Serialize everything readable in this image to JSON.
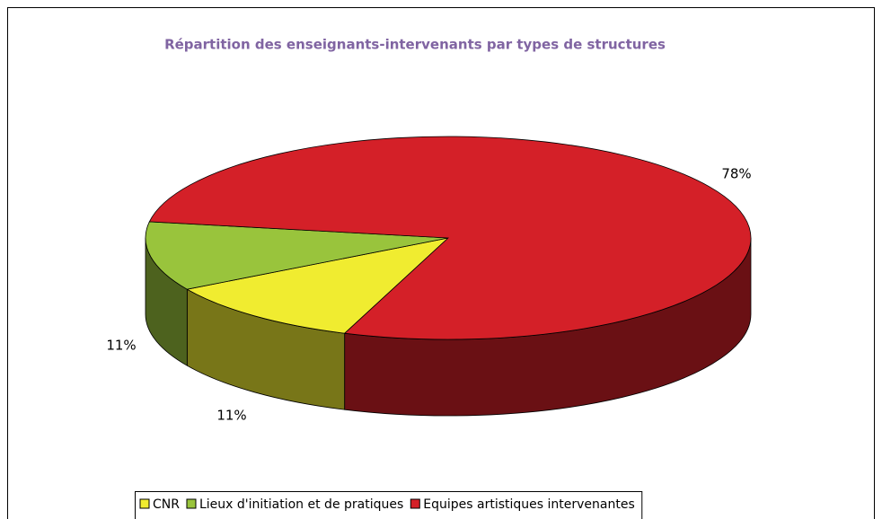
{
  "chart_data": {
    "type": "pie3d",
    "title": "Répartition des enseignants-intervenants par types de structures",
    "categories": [
      "CNR",
      "Lieux d'initiation et de pratiques",
      "Equipes artistiques intervenantes"
    ],
    "values": [
      11,
      11,
      78
    ],
    "value_labels": [
      "11%",
      "11%",
      "78%"
    ],
    "colors": [
      "#f0ec30",
      "#99c43c",
      "#d42028"
    ],
    "legend": "bottom"
  }
}
